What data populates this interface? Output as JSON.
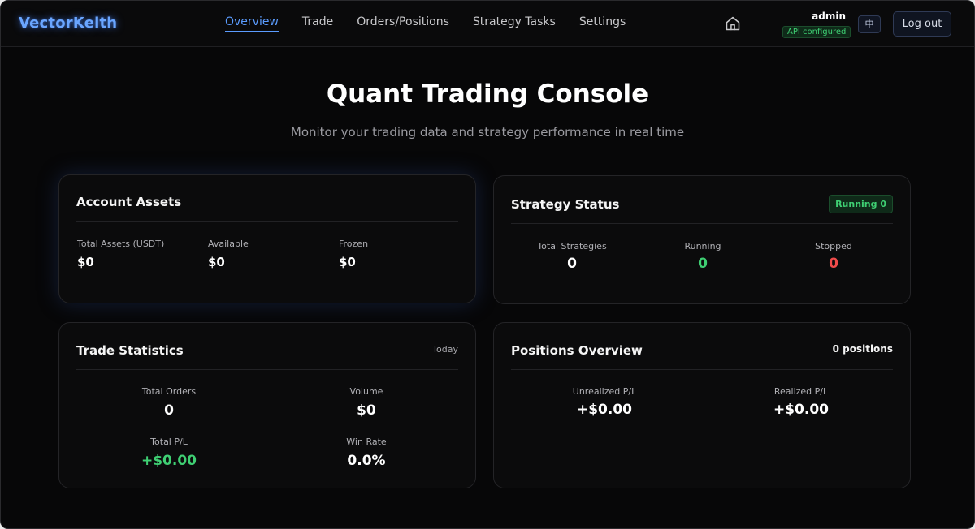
{
  "app": {
    "logo": "VectorKeith"
  },
  "nav": {
    "items": [
      "Overview",
      "Trade",
      "Orders/Positions",
      "Strategy Tasks",
      "Settings"
    ],
    "active_index": 0
  },
  "user": {
    "name": "admin",
    "api_status": "API configured",
    "lang_label": "中",
    "logout_label": "Log out"
  },
  "hero": {
    "title": "Quant Trading Console",
    "subtitle": "Monitor your trading data and strategy performance in real time"
  },
  "account_assets": {
    "title": "Account Assets",
    "total_label": "Total Assets (USDT)",
    "total_value": "$0",
    "available_label": "Available",
    "available_value": "$0",
    "frozen_label": "Frozen",
    "frozen_value": "$0"
  },
  "strategy_status": {
    "title": "Strategy Status",
    "badge": "Running 0",
    "total_label": "Total Strategies",
    "total_value": "0",
    "running_label": "Running",
    "running_value": "0",
    "stopped_label": "Stopped",
    "stopped_value": "0"
  },
  "trade_statistics": {
    "title": "Trade Statistics",
    "period": "Today",
    "orders_label": "Total Orders",
    "orders_value": "0",
    "volume_label": "Volume",
    "volume_value": "$0",
    "pl_label": "Total P/L",
    "pl_value": "+$0.00",
    "winrate_label": "Win Rate",
    "winrate_value": "0.0%"
  },
  "positions_overview": {
    "title": "Positions Overview",
    "count": "0 positions",
    "unrealized_label": "Unrealized P/L",
    "unrealized_value": "+$0.00",
    "realized_label": "Realized P/L",
    "realized_value": "+$0.00"
  },
  "colors": {
    "accent": "#5b9cff",
    "positive": "#3fcf73",
    "negative": "#f04b4b",
    "background": "#070708"
  }
}
